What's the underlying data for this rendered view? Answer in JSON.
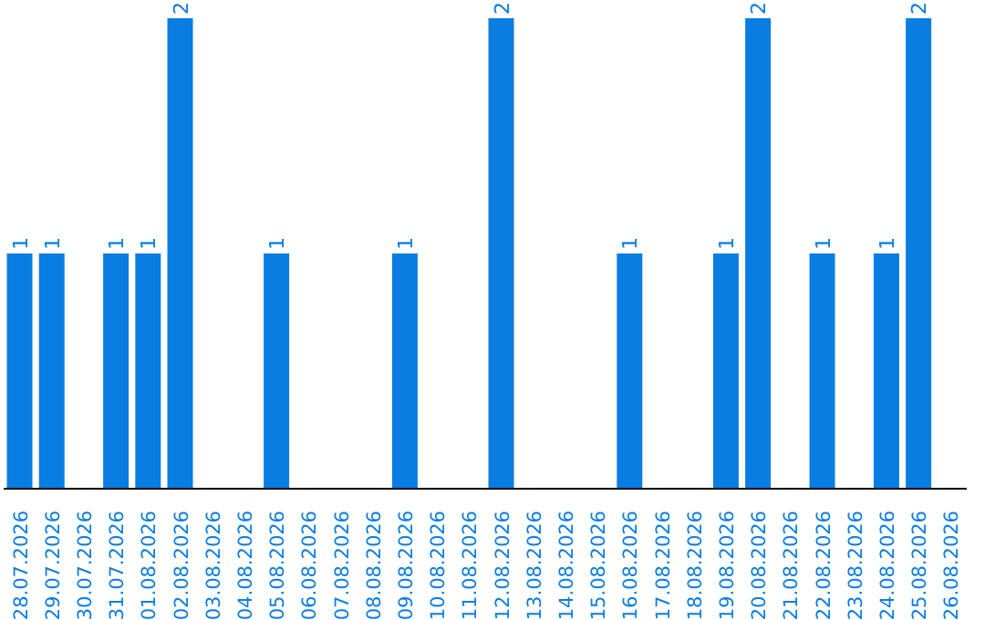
{
  "chart_data": {
    "type": "bar",
    "categories": [
      "28.07.2026",
      "29.07.2026",
      "30.07.2026",
      "31.07.2026",
      "01.08.2026",
      "02.08.2026",
      "03.08.2026",
      "04.08.2026",
      "05.08.2026",
      "06.08.2026",
      "07.08.2026",
      "08.08.2026",
      "09.08.2026",
      "10.08.2026",
      "11.08.2026",
      "12.08.2026",
      "13.08.2026",
      "14.08.2026",
      "15.08.2026",
      "16.08.2026",
      "17.08.2026",
      "18.08.2026",
      "19.08.2026",
      "20.08.2026",
      "21.08.2026",
      "22.08.2026",
      "23.08.2026",
      "24.08.2026",
      "25.08.2026",
      "26.08.2026"
    ],
    "values": [
      1,
      1,
      0,
      1,
      1,
      2,
      0,
      0,
      1,
      0,
      0,
      0,
      1,
      0,
      0,
      2,
      0,
      0,
      0,
      1,
      0,
      0,
      1,
      2,
      0,
      1,
      0,
      1,
      2,
      0
    ],
    "value_labels": [
      "1",
      "1",
      null,
      "1",
      "1",
      "2",
      null,
      null,
      "1",
      null,
      null,
      null,
      "1",
      null,
      null,
      "2",
      null,
      null,
      null,
      "1",
      null,
      null,
      "1",
      "2",
      null,
      "1",
      null,
      "1",
      "2",
      null
    ],
    "color": "#0a7de3",
    "grid": false
  }
}
